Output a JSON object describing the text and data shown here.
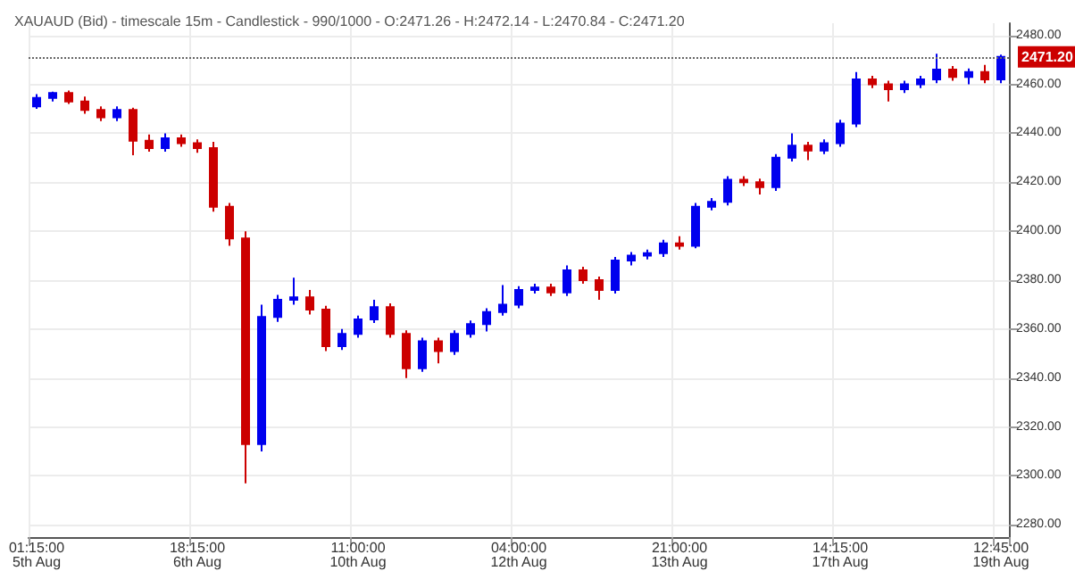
{
  "chart_data": {
    "type": "candlestick",
    "title": "XAUAUD (Bid) - timescale 15m - Candlestick - 990/1000 - O:2471.26 - H:2472.14 - L:2470.84 - C:2471.20",
    "categories": [
      "01:15:00\n5th Aug",
      null,
      null,
      null,
      null,
      null,
      null,
      null,
      null,
      null,
      "18:15:00\n6th Aug",
      null,
      null,
      null,
      null,
      null,
      null,
      null,
      null,
      null,
      "11:00:00\n10th Aug",
      null,
      null,
      null,
      null,
      null,
      null,
      null,
      null,
      null,
      "04:00:00\n12th Aug",
      null,
      null,
      null,
      null,
      null,
      null,
      null,
      null,
      null,
      "21:00:00\n13th Aug",
      null,
      null,
      null,
      null,
      null,
      null,
      null,
      null,
      null,
      "14:15:00\n17th Aug",
      null,
      null,
      null,
      null,
      null,
      null,
      null,
      null,
      null,
      "12:45:00\n19th Aug"
    ],
    "ohlc": [
      [
        2451,
        2456,
        2450,
        2454.5
      ],
      [
        2454.5,
        2457,
        2453,
        2456.5
      ],
      [
        2456.5,
        2457.5,
        2452,
        2453
      ],
      [
        2453,
        2455,
        2448,
        2449.5
      ],
      [
        2449.5,
        2451,
        2445,
        2446.5
      ],
      [
        2446.5,
        2451,
        2445,
        2449.5
      ],
      [
        2449.5,
        2450.5,
        2431,
        2437
      ],
      [
        2437,
        2439.5,
        2432.5,
        2434
      ],
      [
        2434,
        2440,
        2432.5,
        2438
      ],
      [
        2438,
        2439.5,
        2434.5,
        2436
      ],
      [
        2436,
        2437.5,
        2432,
        2434
      ],
      [
        2434,
        2436.5,
        2408,
        2410
      ],
      [
        2410,
        2411.5,
        2394,
        2397
      ],
      [
        2397,
        2400,
        2297,
        2313
      ],
      [
        2313,
        2370,
        2310,
        2365
      ],
      [
        2365,
        2374,
        2363,
        2372
      ],
      [
        2372,
        2381,
        2370,
        2373
      ],
      [
        2373,
        2376,
        2366,
        2368
      ],
      [
        2368,
        2369.5,
        2351,
        2353
      ],
      [
        2353,
        2360,
        2351.5,
        2358
      ],
      [
        2358,
        2365.5,
        2356.5,
        2364
      ],
      [
        2364,
        2372,
        2362.5,
        2369
      ],
      [
        2369,
        2370.5,
        2356.5,
        2358
      ],
      [
        2358,
        2359.5,
        2340,
        2344
      ],
      [
        2344,
        2356.5,
        2342.5,
        2355
      ],
      [
        2355,
        2356.5,
        2346,
        2351
      ],
      [
        2351,
        2359.5,
        2349.5,
        2358
      ],
      [
        2358,
        2363.5,
        2356.5,
        2362
      ],
      [
        2362,
        2368.5,
        2359,
        2367
      ],
      [
        2367,
        2378,
        2365.5,
        2370
      ],
      [
        2370,
        2377.5,
        2368.5,
        2376
      ],
      [
        2376,
        2378.5,
        2374.5,
        2377
      ],
      [
        2377,
        2378.5,
        2373.5,
        2375
      ],
      [
        2375,
        2386,
        2373.5,
        2384
      ],
      [
        2384,
        2385.5,
        2378.5,
        2380
      ],
      [
        2380,
        2381.5,
        2372,
        2376
      ],
      [
        2376,
        2389.5,
        2374.5,
        2388
      ],
      [
        2388,
        2391.5,
        2386,
        2390
      ],
      [
        2390,
        2392.5,
        2388.5,
        2391
      ],
      [
        2391,
        2396.5,
        2389.5,
        2395
      ],
      [
        2395,
        2398,
        2392.5,
        2394
      ],
      [
        2394,
        2411.5,
        2393,
        2410
      ],
      [
        2410,
        2413.5,
        2408.5,
        2412
      ],
      [
        2412,
        2422.5,
        2410.5,
        2421
      ],
      [
        2421,
        2422.5,
        2418.5,
        2420
      ],
      [
        2420,
        2421.5,
        2415,
        2418
      ],
      [
        2418,
        2431.5,
        2416.5,
        2430
      ],
      [
        2430,
        2440,
        2428.5,
        2435
      ],
      [
        2435,
        2436.5,
        2429,
        2433
      ],
      [
        2433,
        2437.5,
        2431.5,
        2436
      ],
      [
        2436,
        2445.5,
        2434.5,
        2444
      ],
      [
        2444,
        2465,
        2442.5,
        2462
      ],
      [
        2462,
        2463.5,
        2458.5,
        2460
      ],
      [
        2460,
        2461.5,
        2453,
        2458
      ],
      [
        2458,
        2461.5,
        2456.5,
        2460
      ],
      [
        2460,
        2463.5,
        2458.5,
        2462
      ],
      [
        2462,
        2472.5,
        2460.5,
        2466
      ],
      [
        2466,
        2467.5,
        2461.5,
        2463
      ],
      [
        2463,
        2466.5,
        2460,
        2465
      ],
      [
        2465,
        2468,
        2460.5,
        2462
      ],
      [
        2462,
        2472.14,
        2460.5,
        2471.2
      ]
    ],
    "ylim": [
      2275,
      2485
    ],
    "yticks": [
      {
        "value": 2280,
        "label": "2280.00"
      },
      {
        "value": 2300,
        "label": "2300.00"
      },
      {
        "value": 2320,
        "label": "2320.00"
      },
      {
        "value": 2340,
        "label": "2340.00"
      },
      {
        "value": 2360,
        "label": "2360.00"
      },
      {
        "value": 2380,
        "label": "2380.00"
      },
      {
        "value": 2400,
        "label": "2400.00"
      },
      {
        "value": 2420,
        "label": "2420.00"
      },
      {
        "value": 2440,
        "label": "2440.00"
      },
      {
        "value": 2460,
        "label": "2460.00"
      },
      {
        "value": 2480,
        "label": "2480.00"
      }
    ],
    "ref_lines": [
      {
        "axis": "y",
        "value": 2471.2,
        "label": "2471.20",
        "color": "#666666",
        "line_style": "dotted"
      }
    ],
    "grid": true
  }
}
